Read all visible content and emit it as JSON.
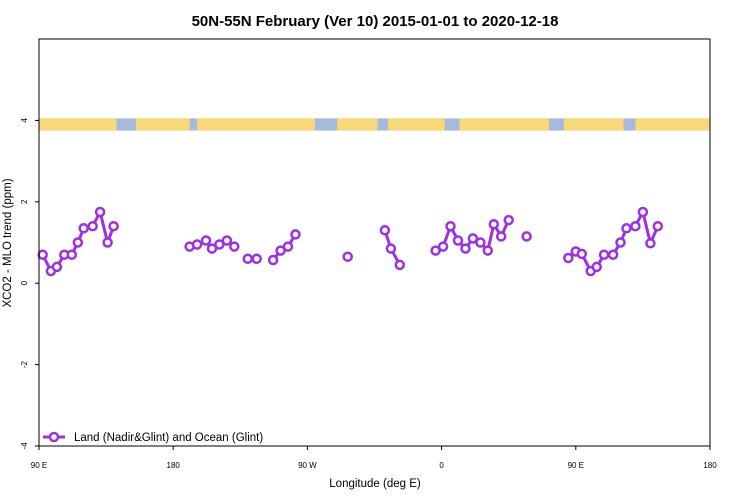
{
  "colors": {
    "series": "#9b30e6",
    "band_ocean": "#a6bbdc",
    "band_land": "#f9d877",
    "axis": "#000000",
    "background": "#ffffff"
  },
  "chart_data": {
    "type": "line",
    "title": "50N-55N February (Ver 10)   2015-01-01 to 2020-12-18",
    "xlabel": "Longitude (deg E)",
    "ylabel": "XCO2 - MLO trend (ppm)",
    "xlim": [
      90,
      540
    ],
    "ylim": [
      -4,
      6
    ],
    "x_ticks": [
      {
        "value": 90,
        "label": "90 E"
      },
      {
        "value": 180,
        "label": "180"
      },
      {
        "value": 270,
        "label": "90 W"
      },
      {
        "value": 360,
        "label": "0"
      },
      {
        "value": 450,
        "label": "90 E"
      },
      {
        "value": 540,
        "label": "180"
      }
    ],
    "y_ticks": [
      {
        "value": -4,
        "label": "-4"
      },
      {
        "value": -2,
        "label": "-2"
      },
      {
        "value": 0,
        "label": "0"
      },
      {
        "value": 2,
        "label": "2"
      },
      {
        "value": 4,
        "label": "4"
      }
    ],
    "grid": false,
    "legend_position": "bottom-left",
    "surface_band": {
      "y_range": [
        3.75,
        4.05
      ],
      "land_segments": [
        [
          90,
          142
        ],
        [
          155,
          191
        ],
        [
          196,
          275
        ],
        [
          290,
          317
        ],
        [
          324,
          362
        ],
        [
          372,
          432
        ],
        [
          442,
          482
        ],
        [
          490,
          540
        ]
      ]
    },
    "series": [
      {
        "name": "Land (Nadir&Glint) and Ocean (Glint)",
        "segments": [
          [
            [
              92.5,
              0.7
            ],
            [
              98,
              0.3
            ],
            [
              102,
              0.4
            ],
            [
              107,
              0.7
            ],
            [
              112,
              0.7
            ],
            [
              116,
              1.0
            ],
            [
              120,
              1.35
            ],
            [
              126,
              1.4
            ],
            [
              131,
              1.75
            ],
            [
              136,
              1.0
            ],
            [
              140,
              1.4
            ]
          ],
          [
            [
              191,
              0.9
            ],
            [
              196,
              0.95
            ],
            [
              202,
              1.05
            ],
            [
              206,
              0.85
            ],
            [
              211,
              0.95
            ],
            [
              216,
              1.05
            ],
            [
              221,
              0.9
            ]
          ],
          [
            [
              230,
              0.6
            ],
            [
              236,
              0.6
            ]
          ],
          [
            [
              247,
              0.57
            ],
            [
              252,
              0.8
            ],
            [
              257,
              0.9
            ],
            [
              262,
              1.2
            ]
          ],
          [
            [
              297,
              0.65
            ]
          ],
          [
            [
              322,
              1.3
            ],
            [
              326,
              0.85
            ],
            [
              332,
              0.45
            ]
          ],
          [
            [
              356,
              0.8
            ],
            [
              361,
              0.9
            ],
            [
              366,
              1.4
            ],
            [
              371,
              1.05
            ],
            [
              376,
              0.85
            ],
            [
              381,
              1.1
            ],
            [
              386,
              1.0
            ],
            [
              391,
              0.8
            ],
            [
              395,
              1.45
            ],
            [
              400,
              1.15
            ],
            [
              405,
              1.55
            ]
          ],
          [
            [
              417,
              1.15
            ]
          ],
          [
            [
              445,
              0.62
            ],
            [
              450,
              0.78
            ],
            [
              454,
              0.72
            ],
            [
              460,
              0.3
            ],
            [
              464,
              0.4
            ],
            [
              469,
              0.7
            ],
            [
              475,
              0.7
            ],
            [
              480,
              1.0
            ],
            [
              484,
              1.35
            ],
            [
              490,
              1.4
            ],
            [
              495,
              1.75
            ],
            [
              500,
              0.98
            ],
            [
              505,
              1.4
            ]
          ]
        ]
      }
    ]
  }
}
